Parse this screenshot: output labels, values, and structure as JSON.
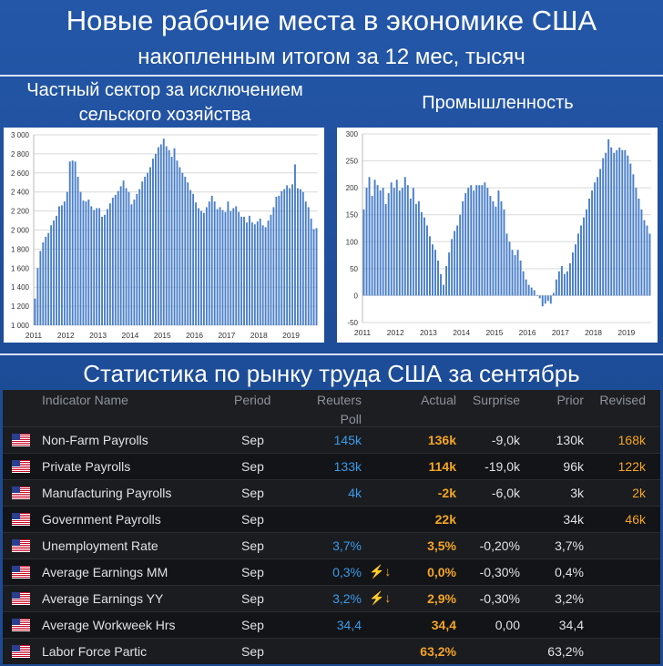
{
  "header": {
    "title": "Новые рабочие места в экономике США",
    "subtitle": "накопленным итогом за 12 мес, тысяч"
  },
  "left_panel_title": [
    "Частный сектор за исключением",
    "сельского хозяйства"
  ],
  "right_panel_title": "Промышленность",
  "chart_data": [
    {
      "type": "bar",
      "title": "Частный сектор за исключением сельского хозяйства",
      "color": "#4a7fc9",
      "ylim": [
        1000,
        3000
      ],
      "yticks": [
        "1 000",
        "1 200",
        "1 400",
        "1 600",
        "1 800",
        "2 000",
        "2 200",
        "2 400",
        "2 600",
        "2 800",
        "3 000"
      ],
      "xticks": [
        "2011",
        "2012",
        "2013",
        "2014",
        "2015",
        "2016",
        "2017",
        "2018",
        "2019"
      ],
      "x_start": "2011-01",
      "x_end": "2019-09",
      "values": [
        1280,
        1600,
        1780,
        1870,
        1930,
        1970,
        2050,
        2100,
        2150,
        2250,
        2260,
        2300,
        2400,
        2720,
        2730,
        2720,
        2560,
        2400,
        2310,
        2300,
        2320,
        2250,
        2210,
        2230,
        2230,
        2140,
        2160,
        2220,
        2280,
        2340,
        2370,
        2410,
        2460,
        2520,
        2440,
        2400,
        2270,
        2320,
        2380,
        2430,
        2510,
        2560,
        2600,
        2660,
        2750,
        2800,
        2870,
        2900,
        2960,
        2880,
        2840,
        2770,
        2860,
        2730,
        2660,
        2600,
        2560,
        2500,
        2420,
        2380,
        2290,
        2230,
        2200,
        2180,
        2240,
        2300,
        2360,
        2300,
        2220,
        2240,
        2210,
        2190,
        2300,
        2200,
        2230,
        2250,
        2190,
        2140,
        2140,
        2080,
        2150,
        2080,
        2060,
        2090,
        2120,
        2050,
        2030,
        2100,
        2160,
        2240,
        2350,
        2360,
        2410,
        2430,
        2470,
        2440,
        2480,
        2690,
        2440,
        2430,
        2400,
        2300,
        2240,
        2120,
        2010,
        2020
      ]
    },
    {
      "type": "bar",
      "title": "Промышленность",
      "color": "#4a7fc9",
      "ylim": [
        -50,
        300
      ],
      "yticks": [
        "-50",
        "0",
        "50",
        "100",
        "150",
        "200",
        "250",
        "300"
      ],
      "xticks": [
        "2011",
        "2012",
        "2013",
        "2014",
        "2015",
        "2016",
        "2017",
        "2018",
        "2019"
      ],
      "x_start": "2011-01",
      "x_end": "2019-09",
      "values": [
        160,
        200,
        220,
        185,
        215,
        205,
        195,
        200,
        170,
        190,
        210,
        200,
        215,
        195,
        200,
        220,
        205,
        180,
        200,
        170,
        175,
        155,
        145,
        130,
        110,
        95,
        85,
        65,
        40,
        20,
        55,
        80,
        105,
        120,
        130,
        150,
        175,
        190,
        200,
        205,
        195,
        205,
        205,
        205,
        210,
        200,
        185,
        175,
        165,
        195,
        175,
        160,
        115,
        100,
        85,
        75,
        85,
        65,
        45,
        30,
        20,
        15,
        10,
        0,
        -5,
        -20,
        -15,
        -10,
        -15,
        5,
        30,
        45,
        55,
        40,
        45,
        60,
        80,
        95,
        115,
        130,
        145,
        160,
        180,
        195,
        210,
        220,
        235,
        255,
        265,
        290,
        275,
        265,
        270,
        275,
        270,
        270,
        260,
        245,
        225,
        200,
        180,
        160,
        140,
        130,
        115
      ]
    }
  ],
  "table": {
    "headers": {
      "indicator": "Indicator Name",
      "period": "Period",
      "poll_1": "Reuters",
      "poll_2": "Poll",
      "actual": "Actual",
      "surprise": "Surprise",
      "prior": "Prior",
      "revised": "Revised"
    },
    "flag_icon": "us-flag-icon",
    "rows": [
      {
        "name": "Non-Farm Payrolls",
        "period": "Sep",
        "poll": "145k",
        "actual": "136k",
        "surprise": "-9,0k",
        "prior": "130k",
        "revised": "168k",
        "alert": ""
      },
      {
        "name": "Private Payrolls",
        "period": "Sep",
        "poll": "133k",
        "actual": "114k",
        "surprise": "-19,0k",
        "prior": "96k",
        "revised": "122k",
        "alert": ""
      },
      {
        "name": "Manufacturing Payrolls",
        "period": "Sep",
        "poll": "4k",
        "actual": "-2k",
        "surprise": "-6,0k",
        "prior": "3k",
        "revised": "2k",
        "alert": ""
      },
      {
        "name": "Government Payrolls",
        "period": "Sep",
        "poll": "",
        "actual": "22k",
        "surprise": "",
        "prior": "34k",
        "revised": "46k",
        "alert": ""
      },
      {
        "name": "Unemployment Rate",
        "period": "Sep",
        "poll": "3,7%",
        "actual": "3,5%",
        "surprise": "-0,20%",
        "prior": "3,7%",
        "revised": "",
        "alert": ""
      },
      {
        "name": "Average Earnings MM",
        "period": "Sep",
        "poll": "0,3%",
        "actual": "0,0%",
        "surprise": "-0,30%",
        "prior": "0,4%",
        "revised": "",
        "alert": "⚡↓"
      },
      {
        "name": "Average Earnings YY",
        "period": "Sep",
        "poll": "3,2%",
        "actual": "2,9%",
        "surprise": "-0,30%",
        "prior": "3,2%",
        "revised": "",
        "alert": "⚡↓"
      },
      {
        "name": "Average Workweek Hrs",
        "period": "Sep",
        "poll": "34,4",
        "actual": "34,4",
        "surprise": "0,00",
        "prior": "34,4",
        "revised": "",
        "alert": ""
      },
      {
        "name": "Labor Force Partic",
        "period": "Sep",
        "poll": "",
        "actual": "63,2%",
        "surprise": "",
        "prior": "63,2%",
        "revised": "",
        "alert": ""
      }
    ]
  },
  "section_title": "Статистика по рынку труда США за сентябрь",
  "colors": {
    "background": "#1f4f96",
    "bar": "#4a7fc9",
    "positive": "#3d9be9",
    "actual": "#f5a524"
  }
}
